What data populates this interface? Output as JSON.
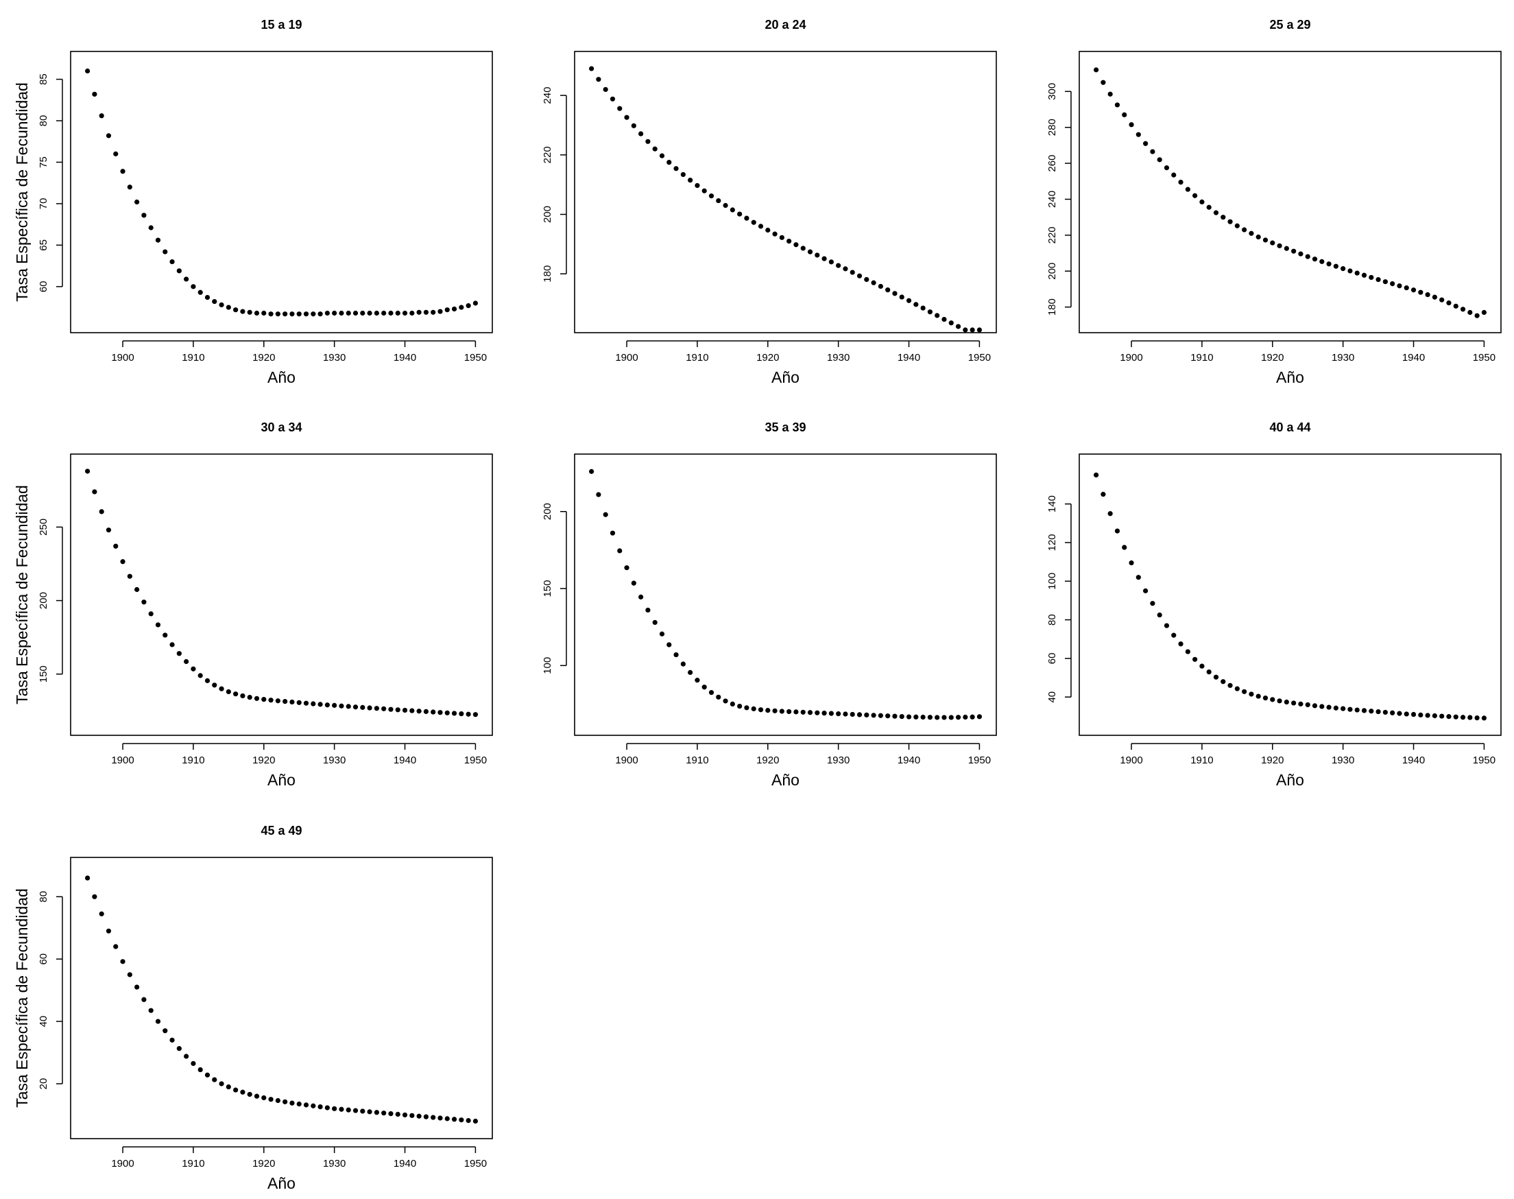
{
  "figure": {
    "background_color": "#ffffff",
    "point_color": "#000000"
  },
  "chart_data": [
    {
      "type": "scatter",
      "title": "15 a 19",
      "xlabel": "Año",
      "ylabel": "Tasa Específica de Fecundidad",
      "xlim": [
        1895,
        1950
      ],
      "ylim": [
        55.8,
        87.0
      ],
      "xticks": [
        1900,
        1910,
        1920,
        1930,
        1940,
        1950
      ],
      "yticks": [
        60,
        65,
        70,
        75,
        80,
        85
      ],
      "x": [
        1895,
        1896,
        1897,
        1898,
        1899,
        1900,
        1901,
        1902,
        1903,
        1904,
        1905,
        1906,
        1907,
        1908,
        1909,
        1910,
        1911,
        1912,
        1913,
        1914,
        1915,
        1916,
        1917,
        1918,
        1919,
        1920,
        1921,
        1922,
        1923,
        1924,
        1925,
        1926,
        1927,
        1928,
        1929,
        1930,
        1931,
        1932,
        1933,
        1934,
        1935,
        1936,
        1937,
        1938,
        1939,
        1940,
        1941,
        1942,
        1943,
        1944,
        1945,
        1946,
        1947,
        1948,
        1949,
        1950
      ],
      "y": [
        86.0,
        83.2,
        80.6,
        78.2,
        76.0,
        73.9,
        72.0,
        70.2,
        68.6,
        67.1,
        65.6,
        64.2,
        63.0,
        61.9,
        60.9,
        60.0,
        59.3,
        58.7,
        58.2,
        57.8,
        57.5,
        57.2,
        57.0,
        56.9,
        56.8,
        56.8,
        56.7,
        56.7,
        56.7,
        56.7,
        56.7,
        56.7,
        56.7,
        56.7,
        56.8,
        56.8,
        56.8,
        56.8,
        56.8,
        56.8,
        56.8,
        56.8,
        56.8,
        56.8,
        56.8,
        56.8,
        56.8,
        56.9,
        56.9,
        56.9,
        57.0,
        57.2,
        57.3,
        57.5,
        57.7,
        58.0
      ]
    },
    {
      "type": "scatter",
      "title": "20 a 24",
      "xlabel": "Año",
      "ylabel": "",
      "xlim": [
        1895,
        1950
      ],
      "ylim": [
        164.0,
        251.0
      ],
      "xticks": [
        1900,
        1910,
        1920,
        1930,
        1940,
        1950
      ],
      "yticks": [
        180,
        200,
        220,
        240
      ],
      "x": [
        1895,
        1896,
        1897,
        1898,
        1899,
        1900,
        1901,
        1902,
        1903,
        1904,
        1905,
        1906,
        1907,
        1908,
        1909,
        1910,
        1911,
        1912,
        1913,
        1914,
        1915,
        1916,
        1917,
        1918,
        1919,
        1920,
        1921,
        1922,
        1923,
        1924,
        1925,
        1926,
        1927,
        1928,
        1929,
        1930,
        1931,
        1932,
        1933,
        1934,
        1935,
        1936,
        1937,
        1938,
        1939,
        1940,
        1941,
        1942,
        1943,
        1944,
        1945,
        1946,
        1947,
        1948,
        1949,
        1950
      ],
      "y": [
        249.0,
        245.4,
        242.0,
        238.8,
        235.6,
        232.6,
        229.8,
        227.1,
        224.5,
        222.0,
        219.7,
        217.5,
        215.4,
        213.4,
        211.5,
        209.7,
        207.9,
        206.2,
        204.6,
        203.0,
        201.5,
        200.1,
        198.7,
        197.3,
        196.0,
        194.7,
        193.4,
        192.2,
        191.0,
        189.8,
        188.6,
        187.4,
        186.3,
        185.1,
        184.0,
        182.8,
        181.7,
        180.5,
        179.3,
        178.1,
        177.0,
        175.8,
        174.6,
        173.4,
        172.2,
        171.0,
        169.7,
        168.5,
        167.2,
        166.0,
        164.7,
        163.5,
        162.3,
        161.0,
        159.8,
        158.5
      ]
    },
    {
      "type": "scatter",
      "title": "25 a 29",
      "xlabel": "Año",
      "ylabel": "",
      "xlim": [
        1895,
        1950
      ],
      "ylim": [
        172.0,
        316.0
      ],
      "xticks": [
        1900,
        1910,
        1920,
        1930,
        1940,
        1950
      ],
      "yticks": [
        180,
        200,
        220,
        240,
        260,
        280,
        300
      ],
      "x": [
        1895,
        1896,
        1897,
        1898,
        1899,
        1900,
        1901,
        1902,
        1903,
        1904,
        1905,
        1906,
        1907,
        1908,
        1909,
        1910,
        1911,
        1912,
        1913,
        1914,
        1915,
        1916,
        1917,
        1918,
        1919,
        1920,
        1921,
        1922,
        1923,
        1924,
        1925,
        1926,
        1927,
        1928,
        1929,
        1930,
        1931,
        1932,
        1933,
        1934,
        1935,
        1936,
        1937,
        1938,
        1939,
        1940,
        1941,
        1942,
        1943,
        1944,
        1945,
        1946,
        1947,
        1948,
        1949,
        1950
      ],
      "y": [
        312.0,
        305.0,
        298.5,
        292.5,
        287.0,
        281.5,
        276.0,
        271.0,
        266.5,
        262.0,
        257.5,
        253.5,
        249.5,
        245.5,
        242.0,
        238.5,
        235.5,
        232.5,
        230.0,
        227.5,
        225.2,
        223.0,
        221.0,
        219.0,
        217.3,
        215.7,
        214.1,
        212.6,
        211.1,
        209.6,
        208.1,
        206.7,
        205.3,
        204.0,
        202.7,
        201.4,
        200.1,
        198.9,
        197.7,
        196.5,
        195.3,
        194.1,
        193.0,
        191.8,
        190.7,
        189.5,
        188.2,
        186.9,
        185.5,
        184.0,
        182.3,
        180.5,
        178.8,
        177.0,
        175.2,
        177.0
      ]
    },
    {
      "type": "scatter",
      "title": "30 a 34",
      "xlabel": "Año",
      "ylabel": "Tasa Específica de Fecundidad",
      "xlim": [
        1895,
        1950
      ],
      "ylim": [
        116.0,
        292.0
      ],
      "xticks": [
        1900,
        1910,
        1920,
        1930,
        1940,
        1950
      ],
      "yticks": [
        150,
        200,
        250
      ],
      "x": [
        1895,
        1896,
        1897,
        1898,
        1899,
        1900,
        1901,
        1902,
        1903,
        1904,
        1905,
        1906,
        1907,
        1908,
        1909,
        1910,
        1911,
        1912,
        1913,
        1914,
        1915,
        1916,
        1917,
        1918,
        1919,
        1920,
        1921,
        1922,
        1923,
        1924,
        1925,
        1926,
        1927,
        1928,
        1929,
        1930,
        1931,
        1932,
        1933,
        1934,
        1935,
        1936,
        1937,
        1938,
        1939,
        1940,
        1941,
        1942,
        1943,
        1944,
        1945,
        1946,
        1947,
        1948,
        1949,
        1950
      ],
      "y": [
        288.0,
        274.0,
        260.5,
        248.0,
        237.0,
        226.5,
        216.5,
        207.5,
        199.0,
        191.0,
        183.5,
        176.5,
        170.0,
        164.0,
        158.5,
        153.5,
        149.0,
        145.5,
        142.5,
        140.0,
        138.0,
        136.5,
        135.2,
        134.2,
        133.4,
        132.8,
        132.3,
        131.8,
        131.4,
        131.0,
        130.6,
        130.2,
        129.8,
        129.4,
        129.0,
        128.7,
        128.3,
        128.0,
        127.6,
        127.3,
        127.0,
        126.7,
        126.4,
        126.0,
        125.7,
        125.4,
        125.1,
        124.8,
        124.5,
        124.2,
        123.9,
        123.6,
        123.3,
        123.0,
        122.7,
        122.5
      ]
    },
    {
      "type": "scatter",
      "title": "35 a 39",
      "xlabel": "Año",
      "ylabel": "",
      "xlim": [
        1895,
        1950
      ],
      "ylim": [
        62.0,
        230.0
      ],
      "xticks": [
        1900,
        1910,
        1920,
        1930,
        1940,
        1950
      ],
      "yticks": [
        100,
        150,
        200
      ],
      "x": [
        1895,
        1896,
        1897,
        1898,
        1899,
        1900,
        1901,
        1902,
        1903,
        1904,
        1905,
        1906,
        1907,
        1908,
        1909,
        1910,
        1911,
        1912,
        1913,
        1914,
        1915,
        1916,
        1917,
        1918,
        1919,
        1920,
        1921,
        1922,
        1923,
        1924,
        1925,
        1926,
        1927,
        1928,
        1929,
        1930,
        1931,
        1932,
        1933,
        1934,
        1935,
        1936,
        1937,
        1938,
        1939,
        1940,
        1941,
        1942,
        1943,
        1944,
        1945,
        1946,
        1947,
        1948,
        1949,
        1950
      ],
      "y": [
        226.0,
        211.0,
        198.0,
        186.0,
        174.5,
        163.5,
        153.5,
        144.5,
        136.0,
        128.0,
        120.5,
        113.5,
        107.0,
        101.0,
        95.5,
        90.5,
        86.0,
        82.5,
        79.5,
        77.0,
        75.0,
        73.6,
        72.6,
        71.9,
        71.3,
        70.9,
        70.6,
        70.3,
        70.1,
        69.9,
        69.7,
        69.5,
        69.3,
        69.1,
        68.9,
        68.7,
        68.5,
        68.3,
        68.1,
        67.9,
        67.7,
        67.5,
        67.3,
        67.1,
        66.9,
        66.7,
        66.6,
        66.5,
        66.4,
        66.3,
        66.3,
        66.3,
        66.4,
        66.5,
        66.6,
        66.8
      ]
    },
    {
      "type": "scatter",
      "title": "40 a 44",
      "xlabel": "Año",
      "ylabel": "",
      "xlim": [
        1895,
        1950
      ],
      "ylim": [
        26.0,
        160.0
      ],
      "xticks": [
        1900,
        1910,
        1920,
        1930,
        1940,
        1950
      ],
      "yticks": [
        40,
        60,
        80,
        100,
        120,
        140
      ],
      "x": [
        1895,
        1896,
        1897,
        1898,
        1899,
        1900,
        1901,
        1902,
        1903,
        1904,
        1905,
        1906,
        1907,
        1908,
        1909,
        1910,
        1911,
        1912,
        1913,
        1914,
        1915,
        1916,
        1917,
        1918,
        1919,
        1920,
        1921,
        1922,
        1923,
        1924,
        1925,
        1926,
        1927,
        1928,
        1929,
        1930,
        1931,
        1932,
        1933,
        1934,
        1935,
        1936,
        1937,
        1938,
        1939,
        1940,
        1941,
        1942,
        1943,
        1944,
        1945,
        1946,
        1947,
        1948,
        1949,
        1950
      ],
      "y": [
        155.0,
        145.0,
        135.0,
        126.0,
        117.5,
        109.5,
        102.0,
        95.0,
        88.5,
        82.5,
        77.0,
        72.0,
        67.5,
        63.5,
        59.5,
        56.0,
        53.0,
        50.3,
        48.0,
        46.0,
        44.3,
        42.8,
        41.5,
        40.4,
        39.5,
        38.7,
        38.0,
        37.4,
        36.9,
        36.4,
        36.0,
        35.5,
        35.1,
        34.7,
        34.3,
        34.0,
        33.6,
        33.3,
        33.0,
        32.7,
        32.4,
        32.1,
        31.8,
        31.5,
        31.2,
        31.0,
        30.7,
        30.5,
        30.3,
        30.1,
        29.9,
        29.7,
        29.5,
        29.4,
        29.2,
        29.1
      ]
    },
    {
      "type": "scatter",
      "title": "45 a 49",
      "xlabel": "Año",
      "ylabel": "Tasa Específica de Fecundidad",
      "xlim": [
        1895,
        1950
      ],
      "ylim": [
        6.0,
        89.0
      ],
      "xticks": [
        1900,
        1910,
        1920,
        1930,
        1940,
        1950
      ],
      "yticks": [
        20,
        40,
        60,
        80
      ],
      "x": [
        1895,
        1896,
        1897,
        1898,
        1899,
        1900,
        1901,
        1902,
        1903,
        1904,
        1905,
        1906,
        1907,
        1908,
        1909,
        1910,
        1911,
        1912,
        1913,
        1914,
        1915,
        1916,
        1917,
        1918,
        1919,
        1920,
        1921,
        1922,
        1923,
        1924,
        1925,
        1926,
        1927,
        1928,
        1929,
        1930,
        1931,
        1932,
        1933,
        1934,
        1935,
        1936,
        1937,
        1938,
        1939,
        1940,
        1941,
        1942,
        1943,
        1944,
        1945,
        1946,
        1947,
        1948,
        1949,
        1950
      ],
      "y": [
        86.0,
        80.0,
        74.5,
        69.0,
        64.0,
        59.2,
        55.0,
        51.0,
        47.0,
        43.5,
        40.0,
        37.0,
        34.0,
        31.3,
        28.8,
        26.5,
        24.5,
        22.8,
        21.3,
        20.0,
        19.0,
        18.0,
        17.3,
        16.6,
        16.0,
        15.5,
        15.0,
        14.6,
        14.2,
        13.8,
        13.5,
        13.2,
        12.9,
        12.6,
        12.3,
        12.0,
        11.8,
        11.6,
        11.4,
        11.2,
        11.0,
        10.8,
        10.6,
        10.4,
        10.2,
        10.0,
        9.8,
        9.6,
        9.4,
        9.2,
        9.0,
        8.8,
        8.6,
        8.4,
        8.2,
        8.0
      ]
    }
  ]
}
